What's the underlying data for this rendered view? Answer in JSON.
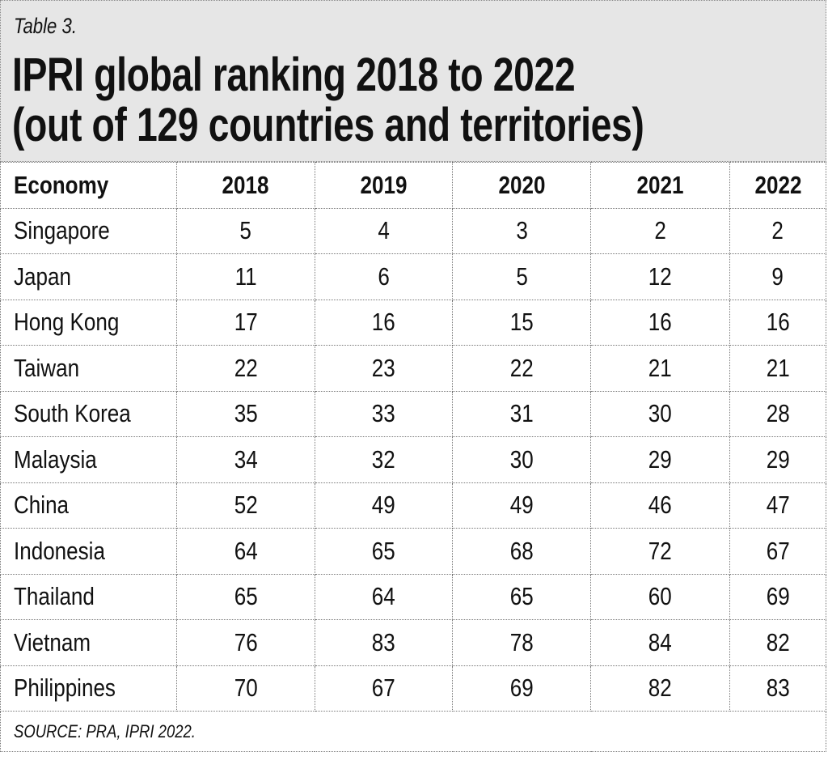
{
  "label": "Table 3.",
  "title_line1": "IPRI global ranking 2018 to 2022",
  "title_line2": "(out of 129 countries and territories)",
  "columns": [
    "Economy",
    "2018",
    "2019",
    "2020",
    "2021",
    "2022"
  ],
  "rows": [
    [
      "Singapore",
      "5",
      "4",
      "3",
      "2",
      "2"
    ],
    [
      "Japan",
      "11",
      "6",
      "5",
      "12",
      "9"
    ],
    [
      "Hong Kong",
      "17",
      "16",
      "15",
      "16",
      "16"
    ],
    [
      "Taiwan",
      "22",
      "23",
      "22",
      "21",
      "21"
    ],
    [
      "South Korea",
      "35",
      "33",
      "31",
      "30",
      "28"
    ],
    [
      "Malaysia",
      "34",
      "32",
      "30",
      "29",
      "29"
    ],
    [
      "China",
      "52",
      "49",
      "49",
      "46",
      "47"
    ],
    [
      "Indonesia",
      "64",
      "65",
      "68",
      "72",
      "67"
    ],
    [
      "Thailand",
      "65",
      "64",
      "65",
      "60",
      "69"
    ],
    [
      "Vietnam",
      "76",
      "83",
      "78",
      "84",
      "82"
    ],
    [
      "Philippines",
      "70",
      "67",
      "69",
      "82",
      "83"
    ]
  ],
  "source": "SOURCE: PRA, IPRI 2022.",
  "colors": {
    "header_bg": "#e6e6e6",
    "text": "#111111"
  }
}
